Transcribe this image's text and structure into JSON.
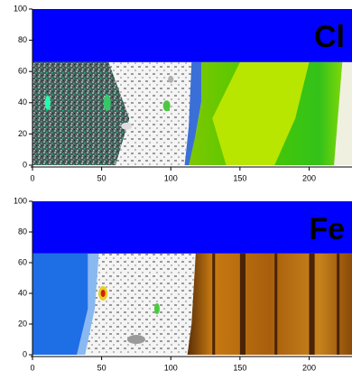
{
  "chart_data": [
    {
      "type": "heatmap",
      "label": "Cl",
      "xlim": [
        0,
        231
      ],
      "ylim": [
        0,
        100
      ],
      "xticks": [
        0,
        50,
        100,
        150,
        200
      ],
      "yticks": [
        0,
        20,
        40,
        60,
        80,
        100
      ]
    },
    {
      "type": "heatmap",
      "label": "Fe",
      "xlim": [
        0,
        231
      ],
      "ylim": [
        0,
        100
      ],
      "xticks": [
        0,
        50,
        100,
        150,
        200
      ],
      "yticks": [
        0,
        20,
        40,
        60,
        80,
        100
      ]
    }
  ]
}
